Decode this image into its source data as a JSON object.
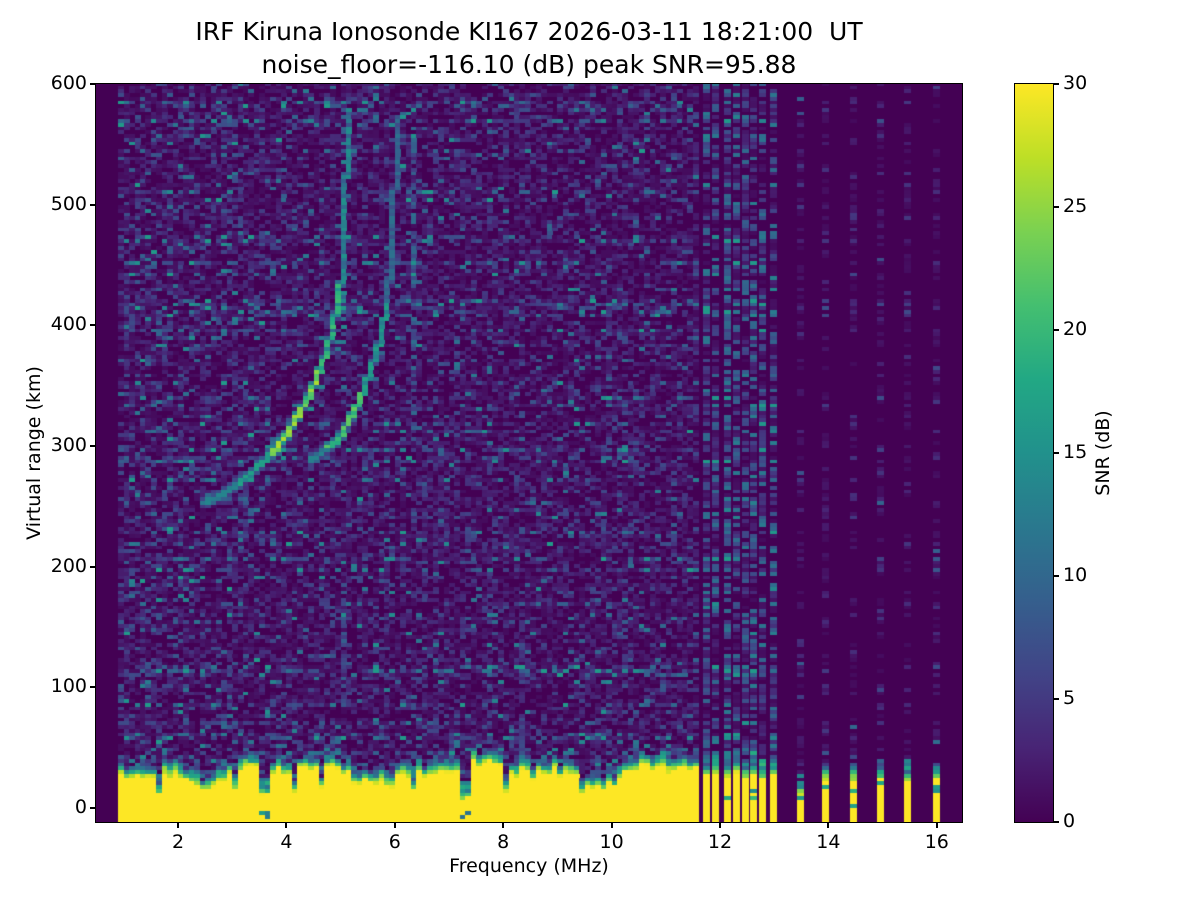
{
  "figure": {
    "title_line1": "IRF Kiruna Ionosonde KI167 2026-03-11 18:21:00  UT",
    "title_line2": "noise_floor=-116.10 (dB) peak SNR=95.88",
    "background": "#ffffff"
  },
  "axes": {
    "xlabel": "Frequency (MHz)",
    "ylabel": "Virtual range (km)",
    "xticks": [
      2,
      4,
      6,
      8,
      10,
      12,
      14,
      16
    ],
    "yticks": [
      0,
      100,
      200,
      300,
      400,
      500,
      600
    ],
    "xlim": [
      0.49,
      16.47
    ],
    "ylim": [
      -12,
      600
    ]
  },
  "colorbar": {
    "label": "SNR (dB)",
    "ticks": [
      0,
      5,
      10,
      15,
      20,
      25,
      30
    ],
    "clim": [
      0,
      30
    ],
    "colormap": "viridis",
    "stops": [
      "#440154",
      "#482475",
      "#414487",
      "#355f8d",
      "#2a788e",
      "#21918c",
      "#22a884",
      "#44bf70",
      "#7ad151",
      "#bddf26",
      "#fde725"
    ]
  },
  "chart_data": {
    "type": "heatmap",
    "title": "IRF Kiruna Ionosonde KI167 2026-03-11 18:21:00  UT\nnoise_floor=-116.10 (dB) peak SNR=95.88",
    "station": "IRF Kiruna Ionosonde KI167",
    "timestamp_ut": "2026-03-11 18:21:00",
    "noise_floor_db": -116.1,
    "peak_snr_db": 95.88,
    "xlabel": "Frequency (MHz)",
    "ylabel": "Virtual range (km)",
    "colorbar_label": "SNR (dB)",
    "xlim": [
      0.49,
      16.47
    ],
    "ylim": [
      -12,
      600
    ],
    "clim": [
      0,
      30
    ],
    "colormap": "viridis",
    "continuous_sweep_mhz": [
      0.95,
      11.62
    ],
    "interference_band_mhz": [
      11.65,
      13.05
    ],
    "sparse_soundings": [
      {
        "f": 11.75,
        "ground_km": 27,
        "teal_km": 40
      },
      {
        "f": 11.9,
        "ground_km": 28,
        "teal_km": 44
      },
      {
        "f": 12.12,
        "ground_km": 24,
        "teal_km": 46,
        "dense": true
      },
      {
        "f": 12.3,
        "ground_km": 27,
        "teal_km": 42
      },
      {
        "f": 12.46,
        "ground_km": 25,
        "teal_km": 40
      },
      {
        "f": 12.61,
        "ground_km": 26,
        "teal_km": 44
      },
      {
        "f": 12.78,
        "ground_km": 24,
        "teal_km": 38
      },
      {
        "f": 12.98,
        "ground_km": 26,
        "teal_km": 40
      },
      {
        "f": 13.48,
        "ground_km": 8,
        "teal_km": 26
      },
      {
        "f": 13.94,
        "ground_km": 22,
        "teal_km": 30
      },
      {
        "f": 14.45,
        "ground_km": 20,
        "teal_km": 32
      },
      {
        "f": 14.95,
        "ground_km": 22,
        "teal_km": 30
      },
      {
        "f": 15.45,
        "ground_km": 20,
        "teal_km": 34
      },
      {
        "f": 15.98,
        "ground_km": 24,
        "teal_km": 30
      }
    ],
    "ground_pulse": {
      "typical_top_km": 30,
      "fringe_km": 12,
      "notches": [
        {
          "f": 1.65,
          "top_km": 8
        },
        {
          "f": 2.5,
          "top_km": 14
        },
        {
          "f": 3.05,
          "top_km": 13
        },
        {
          "f": 3.6,
          "top_km": 7
        },
        {
          "f": 4.18,
          "top_km": 10
        },
        {
          "f": 4.67,
          "top_km": 13
        },
        {
          "f": 5.9,
          "top_km": 14
        },
        {
          "f": 6.32,
          "top_km": 12
        },
        {
          "f": 7.3,
          "top_km": 3
        },
        {
          "f": 8.03,
          "top_km": 12
        },
        {
          "f": 9.47,
          "top_km": 9
        },
        {
          "f": 10.03,
          "top_km": 13
        }
      ]
    },
    "f_layer_trace": {
      "o_mode": [
        [
          2.45,
          252
        ],
        [
          2.6,
          254
        ],
        [
          2.75,
          257
        ],
        [
          2.9,
          260
        ],
        [
          3.05,
          265
        ],
        [
          3.2,
          270
        ],
        [
          3.35,
          276
        ],
        [
          3.5,
          282
        ],
        [
          3.65,
          289
        ],
        [
          3.8,
          296
        ],
        [
          3.95,
          305
        ],
        [
          4.1,
          315
        ],
        [
          4.25,
          326
        ],
        [
          4.4,
          339
        ],
        [
          4.55,
          354
        ],
        [
          4.7,
          371
        ],
        [
          4.82,
          390
        ],
        [
          4.92,
          410
        ],
        [
          5.0,
          432
        ],
        [
          5.05,
          458
        ],
        [
          5.08,
          488
        ],
        [
          5.1,
          520
        ],
        [
          5.12,
          550
        ],
        [
          5.13,
          578
        ]
      ],
      "x_mode": [
        [
          4.4,
          286
        ],
        [
          4.6,
          291
        ],
        [
          4.8,
          298
        ],
        [
          5.0,
          307
        ],
        [
          5.15,
          318
        ],
        [
          5.3,
          331
        ],
        [
          5.45,
          347
        ],
        [
          5.58,
          364
        ],
        [
          5.7,
          383
        ],
        [
          5.8,
          403
        ],
        [
          5.88,
          425
        ],
        [
          5.93,
          450
        ],
        [
          5.97,
          478
        ],
        [
          6.0,
          510
        ],
        [
          6.02,
          545
        ],
        [
          6.03,
          570
        ]
      ],
      "leading_edge": [
        [
          2.5,
          253
        ],
        [
          3.3,
          255
        ]
      ]
    },
    "vertical_streaks": [
      {
        "f": 5.06,
        "km_range": [
          375,
          585
        ],
        "amp_db": 12
      },
      {
        "f": 5.06,
        "km_range": [
          85,
          200
        ],
        "amp_db": 8
      },
      {
        "f": 6.34,
        "km_range": [
          300,
          565
        ],
        "amp_db": 9
      },
      {
        "f": 8.3,
        "km_range": [
          40,
          160
        ],
        "amp_db": 6
      }
    ]
  }
}
